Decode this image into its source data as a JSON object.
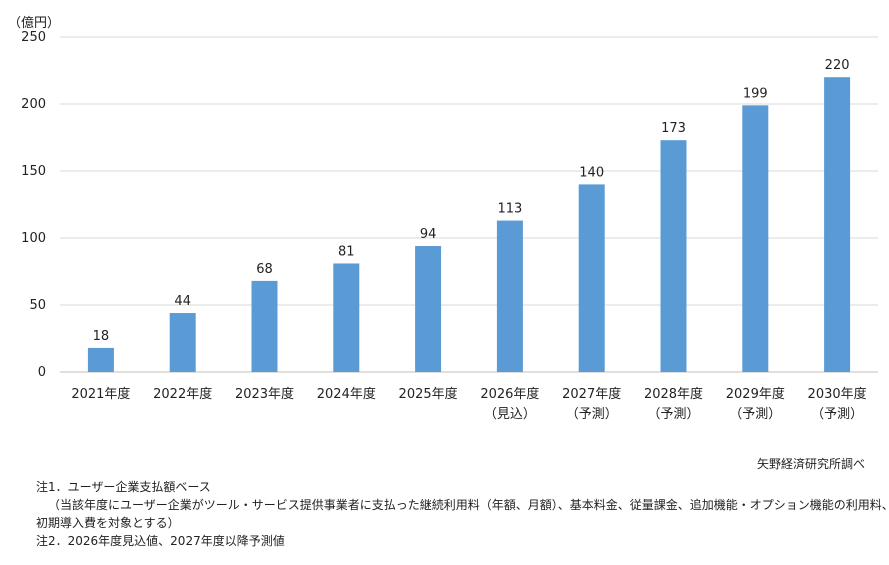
{
  "chart_data": {
    "type": "bar",
    "unit": "（億円）",
    "categories": [
      "2021年度",
      "2022年度",
      "2023年度",
      "2024年度",
      "2025年度",
      "2026年度",
      "2027年度",
      "2028年度",
      "2029年度",
      "2030年度"
    ],
    "sublabels": [
      "",
      "",
      "",
      "",
      "",
      "（見込）",
      "（予測）",
      "（予測）",
      "（予測）",
      "（予測）"
    ],
    "values": [
      18,
      44,
      68,
      81,
      94,
      113,
      140,
      173,
      199,
      220
    ],
    "ylim": [
      0,
      250
    ],
    "yticks": [
      0,
      50,
      100,
      150,
      200,
      250
    ],
    "grid": true,
    "bar_color": "#5B9BD5"
  },
  "source": "矢野経済研究所調べ",
  "notes": {
    "note1": "注1．ユーザー企業支払額ベース",
    "note1_detail_1": "（当該年度にユーザー企業がツール・サービス提供事業者に支払った継続利用料（年額、月額）、基本料金、従量課金、追加機能・オプション機能の利用料、",
    "note1_detail_2": "初期導入費を対象とする）",
    "note2": "注2．2026年度見込値、2027年度以降予測値"
  }
}
